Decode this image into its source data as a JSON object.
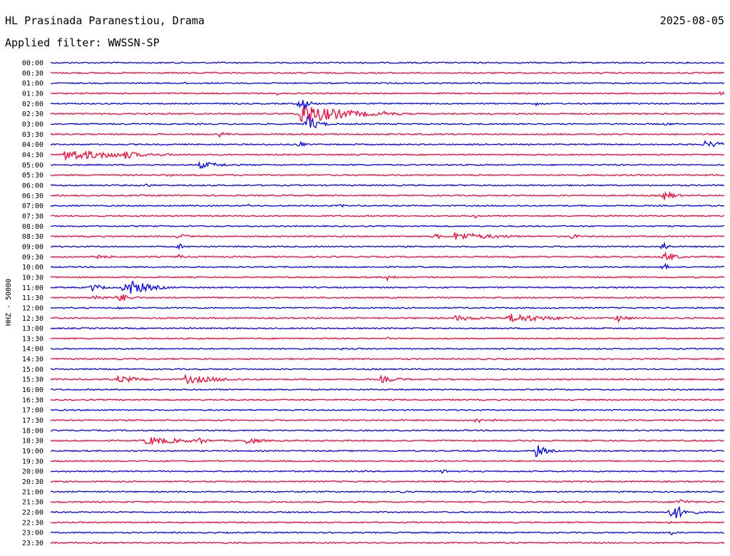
{
  "header": {
    "station": "HL Prasinada Paranestiou, Drama",
    "date": "2025-08-05",
    "filter_prefix": "Applied filter:",
    "filter_name": "WWSSN-SP"
  },
  "colors": {
    "blue": "#0000ff",
    "red": "#ff0033"
  },
  "chart_data": {
    "type": "line",
    "ylabel": "HHZ - 50000",
    "rows": [
      {
        "label": "00:00",
        "color": "blue",
        "events": []
      },
      {
        "label": "00:30",
        "color": "red",
        "events": []
      },
      {
        "label": "01:00",
        "color": "blue",
        "events": [
          {
            "t": 0.2,
            "a": 2,
            "d": 0.01
          }
        ]
      },
      {
        "label": "01:30",
        "color": "red",
        "events": [
          {
            "t": 0.335,
            "a": 3,
            "d": 0.005
          },
          {
            "t": 0.99,
            "a": 4,
            "d": 0.01
          }
        ]
      },
      {
        "label": "02:00",
        "color": "blue",
        "events": [
          {
            "t": 0.37,
            "a": 16,
            "d": 0.01
          },
          {
            "t": 0.72,
            "a": 3,
            "d": 0.015
          }
        ]
      },
      {
        "label": "02:30",
        "color": "red",
        "events": [
          {
            "t": 0.37,
            "a": 16,
            "d": 0.06
          },
          {
            "t": 0.49,
            "a": 4,
            "d": 0.03
          }
        ]
      },
      {
        "label": "03:00",
        "color": "blue",
        "events": [
          {
            "t": 0.38,
            "a": 14,
            "d": 0.015
          },
          {
            "t": 0.91,
            "a": 3,
            "d": 0.015
          }
        ]
      },
      {
        "label": "03:30",
        "color": "red",
        "events": [
          {
            "t": 0.25,
            "a": 4,
            "d": 0.015
          }
        ]
      },
      {
        "label": "04:00",
        "color": "blue",
        "events": [
          {
            "t": 0.97,
            "a": 5,
            "d": 0.04
          },
          {
            "t": 0.37,
            "a": 8,
            "d": 0.005
          }
        ]
      },
      {
        "label": "04:30",
        "color": "red",
        "events": [
          {
            "t": 0.02,
            "a": 8,
            "d": 0.09
          },
          {
            "t": 0.11,
            "a": 7,
            "d": 0.02
          }
        ]
      },
      {
        "label": "05:00",
        "color": "blue",
        "events": [
          {
            "t": 0.22,
            "a": 5,
            "d": 0.04
          }
        ]
      },
      {
        "label": "05:30",
        "color": "red",
        "events": [
          {
            "t": 0.17,
            "a": 3,
            "d": 0.01
          }
        ]
      },
      {
        "label": "06:00",
        "color": "blue",
        "events": [
          {
            "t": 0.14,
            "a": 3,
            "d": 0.015
          }
        ]
      },
      {
        "label": "06:30",
        "color": "red",
        "events": [
          {
            "t": 0.91,
            "a": 8,
            "d": 0.015
          }
        ]
      },
      {
        "label": "07:00",
        "color": "blue",
        "events": [
          {
            "t": 0.29,
            "a": 3,
            "d": 0.01
          },
          {
            "t": 0.43,
            "a": 3,
            "d": 0.01
          }
        ]
      },
      {
        "label": "07:30",
        "color": "red",
        "events": [
          {
            "t": 0.63,
            "a": 3,
            "d": 0.005
          }
        ]
      },
      {
        "label": "08:00",
        "color": "blue",
        "events": []
      },
      {
        "label": "08:30",
        "color": "red",
        "events": [
          {
            "t": 0.19,
            "a": 7,
            "d": 0.01
          },
          {
            "t": 0.6,
            "a": 6,
            "d": 0.06
          },
          {
            "t": 0.77,
            "a": 4,
            "d": 0.015
          },
          {
            "t": 0.57,
            "a": 5,
            "d": 0.01
          }
        ]
      },
      {
        "label": "09:00",
        "color": "blue",
        "events": [
          {
            "t": 0.19,
            "a": 6,
            "d": 0.005
          },
          {
            "t": 0.91,
            "a": 11,
            "d": 0.005
          }
        ]
      },
      {
        "label": "09:30",
        "color": "red",
        "events": [
          {
            "t": 0.06,
            "a": 4,
            "d": 0.03
          },
          {
            "t": 0.19,
            "a": 6,
            "d": 0.005
          },
          {
            "t": 0.91,
            "a": 10,
            "d": 0.015
          }
        ]
      },
      {
        "label": "10:00",
        "color": "blue",
        "events": [
          {
            "t": 0.91,
            "a": 8,
            "d": 0.005
          }
        ]
      },
      {
        "label": "10:30",
        "color": "red",
        "events": [
          {
            "t": 0.5,
            "a": 5,
            "d": 0.01
          },
          {
            "t": 0.56,
            "a": 2,
            "d": 0.01
          }
        ]
      },
      {
        "label": "11:00",
        "color": "blue",
        "events": [
          {
            "t": 0.06,
            "a": 7,
            "d": 0.015
          },
          {
            "t": 0.11,
            "a": 14,
            "d": 0.03
          },
          {
            "t": 0.13,
            "a": 8,
            "d": 0.02
          }
        ]
      },
      {
        "label": "11:30",
        "color": "red",
        "events": [
          {
            "t": 0.06,
            "a": 5,
            "d": 0.02
          },
          {
            "t": 0.1,
            "a": 7,
            "d": 0.02
          }
        ]
      },
      {
        "label": "12:00",
        "color": "blue",
        "events": [
          {
            "t": 0.1,
            "a": 4,
            "d": 0.005
          }
        ]
      },
      {
        "label": "12:30",
        "color": "red",
        "events": [
          {
            "t": 0.6,
            "a": 4,
            "d": 0.05
          },
          {
            "t": 0.68,
            "a": 7,
            "d": 0.06
          },
          {
            "t": 0.84,
            "a": 7,
            "d": 0.015
          }
        ]
      },
      {
        "label": "13:00",
        "color": "blue",
        "events": [
          {
            "t": 0.5,
            "a": 2,
            "d": 0.005
          }
        ]
      },
      {
        "label": "13:30",
        "color": "red",
        "events": [
          {
            "t": 0.5,
            "a": 3,
            "d": 0.005
          }
        ]
      },
      {
        "label": "14:00",
        "color": "blue",
        "events": [
          {
            "t": 0.23,
            "a": 2,
            "d": 0.005
          },
          {
            "t": 0.43,
            "a": 2,
            "d": 0.01
          }
        ]
      },
      {
        "label": "14:30",
        "color": "red",
        "events": []
      },
      {
        "label": "15:00",
        "color": "blue",
        "events": [
          {
            "t": 0.55,
            "a": 2,
            "d": 0.01
          }
        ]
      },
      {
        "label": "15:30",
        "color": "red",
        "events": [
          {
            "t": 0.1,
            "a": 5,
            "d": 0.04
          },
          {
            "t": 0.2,
            "a": 6,
            "d": 0.06
          },
          {
            "t": 0.49,
            "a": 5,
            "d": 0.03
          }
        ]
      },
      {
        "label": "16:00",
        "color": "blue",
        "events": []
      },
      {
        "label": "16:30",
        "color": "red",
        "events": []
      },
      {
        "label": "17:00",
        "color": "blue",
        "events": []
      },
      {
        "label": "17:30",
        "color": "red",
        "events": [
          {
            "t": 0.63,
            "a": 4,
            "d": 0.03
          }
        ]
      },
      {
        "label": "18:00",
        "color": "blue",
        "events": []
      },
      {
        "label": "18:30",
        "color": "red",
        "events": [
          {
            "t": 0.14,
            "a": 6,
            "d": 0.06
          },
          {
            "t": 0.22,
            "a": 7,
            "d": 0.01
          },
          {
            "t": 0.29,
            "a": 6,
            "d": 0.02
          }
        ]
      },
      {
        "label": "19:00",
        "color": "blue",
        "events": [
          {
            "t": 0.72,
            "a": 10,
            "d": 0.015
          }
        ]
      },
      {
        "label": "19:30",
        "color": "red",
        "events": []
      },
      {
        "label": "20:00",
        "color": "blue",
        "events": [
          {
            "t": 0.58,
            "a": 4,
            "d": 0.015
          }
        ]
      },
      {
        "label": "20:30",
        "color": "red",
        "events": []
      },
      {
        "label": "21:00",
        "color": "blue",
        "events": [
          {
            "t": 0.52,
            "a": 3,
            "d": 0.01
          }
        ]
      },
      {
        "label": "21:30",
        "color": "red",
        "events": [
          {
            "t": 0.93,
            "a": 5,
            "d": 0.02
          }
        ]
      },
      {
        "label": "22:00",
        "color": "blue",
        "events": [
          {
            "t": 0.92,
            "a": 14,
            "d": 0.02
          }
        ]
      },
      {
        "label": "22:30",
        "color": "red",
        "events": [
          {
            "t": 0.92,
            "a": 6,
            "d": 0.005
          }
        ]
      },
      {
        "label": "23:00",
        "color": "blue",
        "events": [
          {
            "t": 0.92,
            "a": 6,
            "d": 0.005
          }
        ]
      },
      {
        "label": "23:30",
        "color": "red",
        "events": []
      }
    ]
  }
}
